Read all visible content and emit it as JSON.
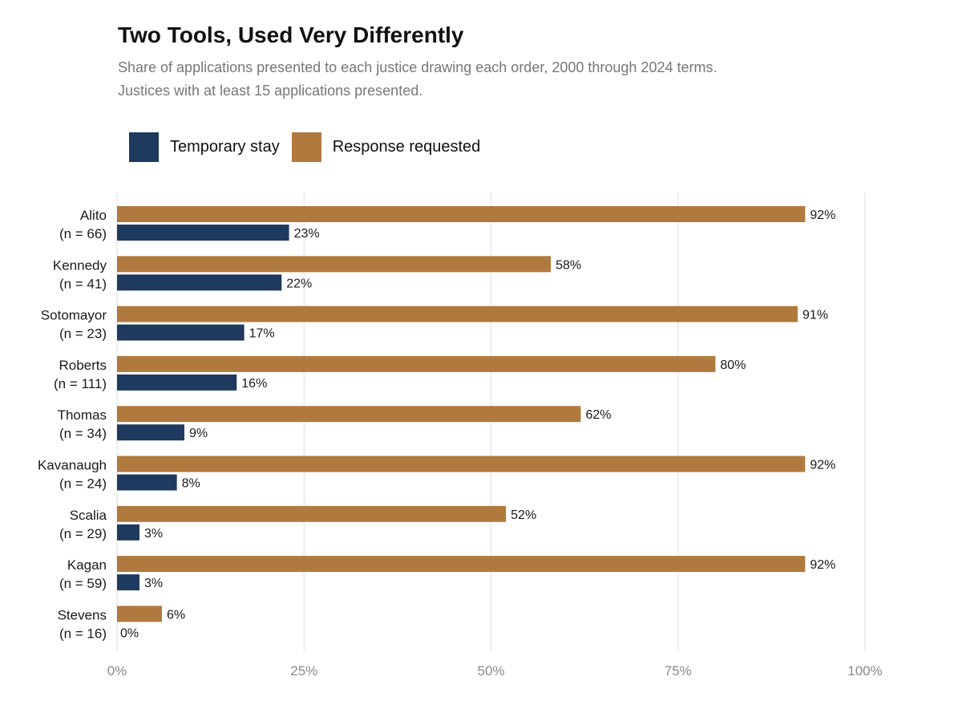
{
  "chart_data": {
    "type": "bar",
    "orientation": "horizontal",
    "title": "Two Tools, Used Very Differently",
    "subtitle_lines": [
      "Share of applications presented to each justice drawing each order, 2000 through 2024 terms.",
      "Justices with at least 15 applications presented."
    ],
    "categories": [
      {
        "name": "Alito",
        "n_label": "(n = 66)"
      },
      {
        "name": "Kennedy",
        "n_label": "(n = 41)"
      },
      {
        "name": "Sotomayor",
        "n_label": "(n = 23)"
      },
      {
        "name": "Roberts",
        "n_label": "(n = 111)"
      },
      {
        "name": "Thomas",
        "n_label": "(n = 34)"
      },
      {
        "name": "Kavanaugh",
        "n_label": "(n = 24)"
      },
      {
        "name": "Scalia",
        "n_label": "(n = 29)"
      },
      {
        "name": "Kagan",
        "n_label": "(n = 59)"
      },
      {
        "name": "Stevens",
        "n_label": "(n = 16)"
      }
    ],
    "series": [
      {
        "name": "Response requested",
        "color": "#B07A3E",
        "values": [
          92,
          58,
          91,
          80,
          62,
          92,
          52,
          92,
          6
        ],
        "labels": [
          "92%",
          "58%",
          "91%",
          "80%",
          "62%",
          "92%",
          "52%",
          "92%",
          "6%"
        ]
      },
      {
        "name": "Temporary stay",
        "color": "#1E3A5F",
        "values": [
          23,
          22,
          17,
          16,
          9,
          8,
          3,
          3,
          0
        ],
        "labels": [
          "23%",
          "22%",
          "17%",
          "16%",
          "9%",
          "8%",
          "3%",
          "3%",
          "0%"
        ]
      }
    ],
    "legend": [
      {
        "name": "Temporary stay",
        "color": "#1E3A5F"
      },
      {
        "name": "Response requested",
        "color": "#B07A3E"
      }
    ],
    "legend_position": "top-left",
    "xlim": [
      0,
      100
    ],
    "x_ticks": [
      0,
      25,
      50,
      75,
      100
    ],
    "x_tick_labels": [
      "0%",
      "25%",
      "50%",
      "75%",
      "100%"
    ],
    "xlabel": "",
    "ylabel": "",
    "grid": "vertical"
  }
}
